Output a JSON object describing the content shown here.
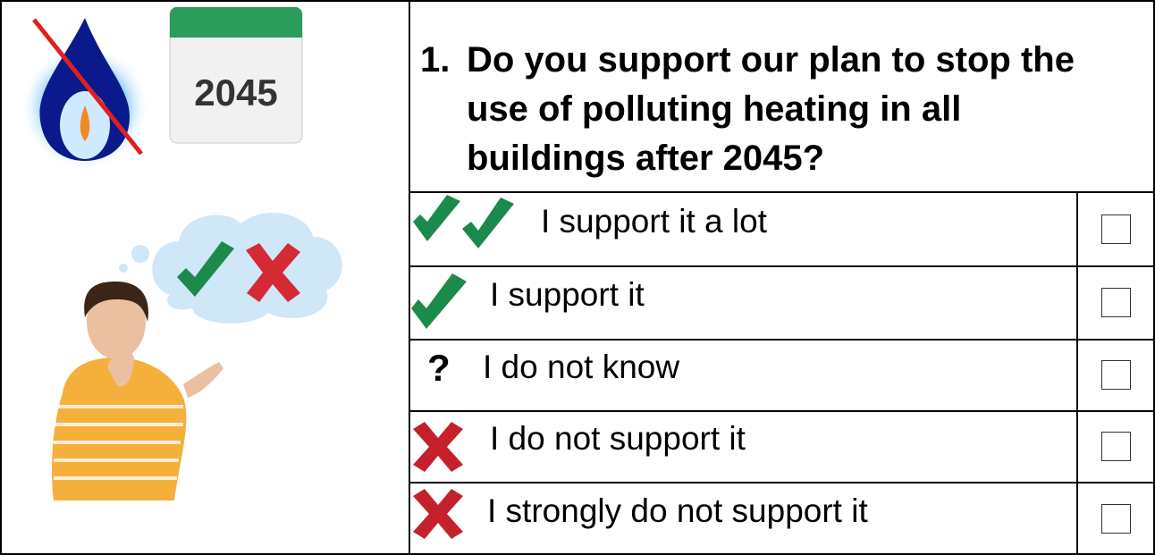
{
  "icons": {
    "calendar_year": "2045"
  },
  "question": {
    "number": "1.",
    "lines": [
      "Do you support our plan to stop the",
      "use of polluting heating in all",
      "buildings after 2045?"
    ]
  },
  "options": [
    {
      "symbol": null,
      "label": "I support it a lot"
    },
    {
      "symbol": null,
      "label": "I support it"
    },
    {
      "symbol": "?",
      "label": "I do not know"
    },
    {
      "symbol": null,
      "label": "I do not support it"
    },
    {
      "symbol": null,
      "label": "I strongly do not support it"
    }
  ]
}
